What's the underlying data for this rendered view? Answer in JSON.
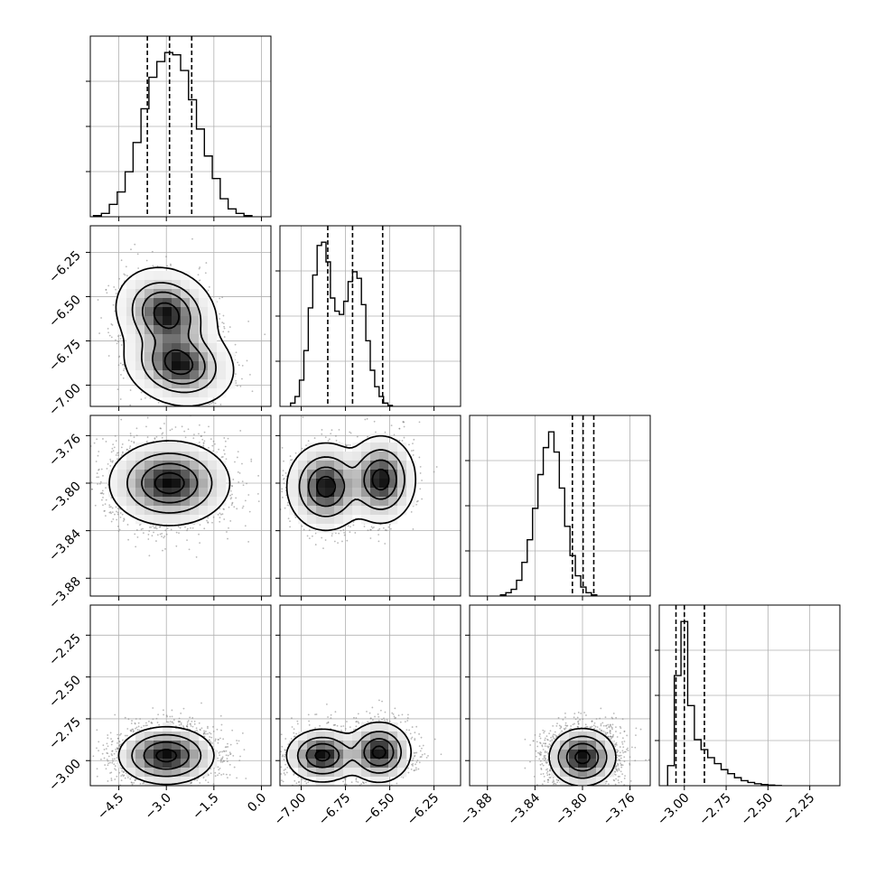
{
  "chart_data": {
    "type": "corner",
    "title": "",
    "parameters": [
      {
        "label": "",
        "range": [
          -5.4,
          0.3
        ],
        "ticks": [
          -4.5,
          -3.0,
          -1.5,
          0.0
        ],
        "tick_labels": [
          "−4.5",
          "−3.0",
          "−1.5",
          "0.0"
        ]
      },
      {
        "label": "",
        "range": [
          -7.12,
          -6.1
        ],
        "ticks": [
          -7.0,
          -6.75,
          -6.5,
          -6.25
        ],
        "tick_labels": [
          "−7.00",
          "−6.75",
          "−6.50",
          "−6.25"
        ]
      },
      {
        "label": "",
        "range": [
          -3.895,
          -3.743
        ],
        "ticks": [
          -3.88,
          -3.84,
          -3.8,
          -3.76
        ],
        "tick_labels": [
          "−3.88",
          "−3.84",
          "−3.80",
          "−3.76"
        ]
      },
      {
        "label": "",
        "range": [
          -3.15,
          -2.07
        ],
        "ticks": [
          -3.0,
          -2.75,
          -2.5,
          -2.25
        ],
        "tick_labels": [
          "−3.00",
          "−2.75",
          "−2.50",
          "−2.25"
        ]
      }
    ],
    "histograms": [
      {
        "param": 0,
        "quantiles": [
          -3.6,
          -2.9,
          -2.2
        ],
        "bins": {
          "start": -5.3,
          "width": 0.25,
          "counts": [
            0.5,
            1.5,
            5.5,
            11,
            20,
            33,
            48,
            62,
            69,
            73,
            72,
            65,
            52,
            39,
            27,
            17,
            8,
            3.5,
            1.5,
            0.5
          ]
        }
      },
      {
        "param": 1,
        "quantiles": [
          -6.85,
          -6.71,
          -6.54
        ],
        "bins": {
          "start": -7.06,
          "width": 0.025,
          "counts": [
            1,
            3,
            8,
            17,
            30,
            40,
            49,
            50,
            44,
            33,
            29,
            28,
            32,
            38,
            41,
            39,
            31,
            20,
            11,
            6,
            3,
            1,
            0.3
          ]
        }
      },
      {
        "param": 2,
        "quantiles": [
          -3.8085,
          -3.7995,
          -3.7905
        ],
        "bins": {
          "start": -3.869,
          "width": 0.0045,
          "counts": [
            0.5,
            1.5,
            3,
            7,
            15,
            25,
            39,
            54,
            66,
            73,
            64,
            48,
            31,
            18,
            9,
            4,
            1.5,
            0.5
          ]
        }
      },
      {
        "param": 3,
        "quantiles": [
          -3.05,
          -3.0,
          -2.88
        ],
        "bins": {
          "start": -3.1,
          "width": 0.04,
          "counts": [
            10,
            55,
            82,
            40,
            23,
            18,
            14,
            11,
            8,
            6,
            4,
            2.5,
            1.6,
            1,
            0.6,
            0.3,
            0.1
          ]
        }
      }
    ],
    "pairs": [
      {
        "x_param": 0,
        "y_param": 1,
        "modes": [
          {
            "x": -3.0,
            "y": -6.6,
            "sx": 0.6,
            "sy": 0.1,
            "rho": -0.15,
            "w": 0.5
          },
          {
            "x": -2.6,
            "y": -6.88,
            "sx": 0.65,
            "sy": 0.09,
            "rho": -0.15,
            "w": 0.5
          }
        ],
        "contour_levels": [
          0.03,
          0.2,
          0.45,
          0.8
        ]
      },
      {
        "x_param": 0,
        "y_param": 2,
        "modes": [
          {
            "x": -2.9,
            "y": -3.8,
            "sx": 0.8,
            "sy": 0.015,
            "rho": 0,
            "w": 1
          }
        ],
        "contour_levels": [
          0.06,
          0.25,
          0.55,
          0.85
        ]
      },
      {
        "x_param": 1,
        "y_param": 2,
        "modes": [
          {
            "x": -6.86,
            "y": -3.803,
            "sx": 0.09,
            "sy": 0.015,
            "rho": 0,
            "w": 0.5
          },
          {
            "x": -6.55,
            "y": -3.797,
            "sx": 0.08,
            "sy": 0.015,
            "rho": 0,
            "w": 0.5
          }
        ],
        "contour_levels": [
          0.05,
          0.25,
          0.55,
          0.85
        ]
      },
      {
        "x_param": 0,
        "y_param": 3,
        "modes": [
          {
            "x": -3.0,
            "y": -2.97,
            "sx": 0.7,
            "sy": 0.08,
            "rho": 0,
            "w": 1
          }
        ],
        "contour_levels": [
          0.1,
          0.3,
          0.6,
          0.9
        ]
      },
      {
        "x_param": 1,
        "y_param": 3,
        "modes": [
          {
            "x": -6.88,
            "y": -2.97,
            "sx": 0.09,
            "sy": 0.07,
            "rho": 0,
            "w": 0.5
          },
          {
            "x": -6.56,
            "y": -2.95,
            "sx": 0.08,
            "sy": 0.08,
            "rho": 0,
            "w": 0.5
          }
        ],
        "contour_levels": [
          0.08,
          0.3,
          0.6,
          0.9
        ]
      },
      {
        "x_param": 2,
        "y_param": 3,
        "modes": [
          {
            "x": -3.8,
            "y": -2.98,
            "sx": 0.013,
            "sy": 0.08,
            "rho": 0,
            "w": 1
          }
        ],
        "contour_levels": [
          0.1,
          0.3,
          0.6,
          0.9
        ]
      }
    ],
    "grid": true,
    "scatter_color": "#7f7f7f",
    "contour_color": "#000000"
  }
}
